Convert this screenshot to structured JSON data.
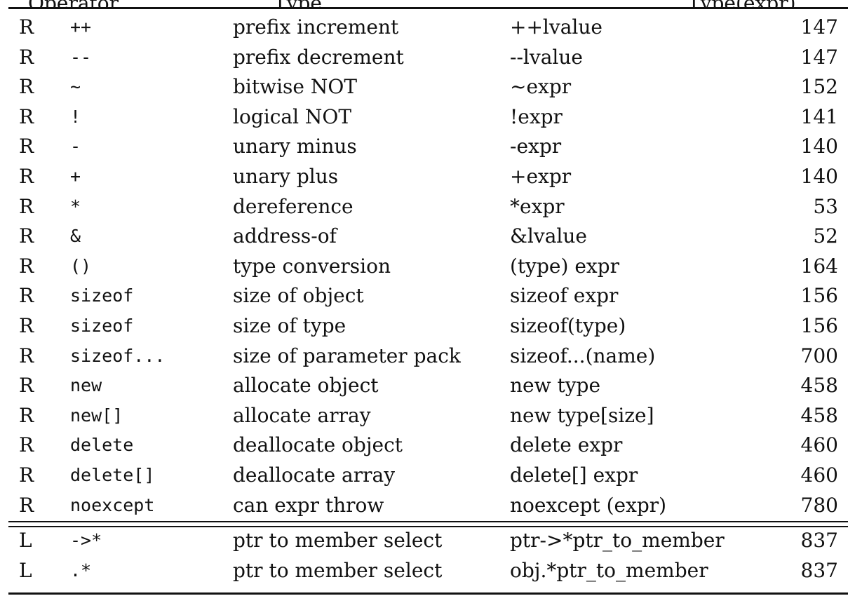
{
  "header_partial": {
    "left": "Operator",
    "mid": "Type",
    "right": "Type(expr)"
  },
  "section1": [
    {
      "assoc": "R",
      "op": "++",
      "func": "prefix increment",
      "use": "++lvalue",
      "page": "147"
    },
    {
      "assoc": "R",
      "op": "--",
      "func": "prefix decrement",
      "use": "--lvalue",
      "page": "147"
    },
    {
      "assoc": "R",
      "op": "~",
      "func": "bitwise NOT",
      "use": "~expr",
      "page": "152"
    },
    {
      "assoc": "R",
      "op": "!",
      "func": "logical NOT",
      "use": "!expr",
      "page": "141"
    },
    {
      "assoc": "R",
      "op": "-",
      "func": "unary minus",
      "use": "-expr",
      "page": "140"
    },
    {
      "assoc": "R",
      "op": "+",
      "func": "unary plus",
      "use": "+expr",
      "page": "140"
    },
    {
      "assoc": "R",
      "op": "*",
      "func": "dereference",
      "use": "*expr",
      "page": "53"
    },
    {
      "assoc": "R",
      "op": "&",
      "func": "address-of",
      "use": "&lvalue",
      "page": "52"
    },
    {
      "assoc": "R",
      "op": "()",
      "func": "type conversion",
      "use": "(type) expr",
      "page": "164"
    },
    {
      "assoc": "R",
      "op": "sizeof",
      "func": "size of object",
      "use": "sizeof expr",
      "page": "156"
    },
    {
      "assoc": "R",
      "op": "sizeof",
      "func": "size of type",
      "use": "sizeof(type)",
      "page": "156"
    },
    {
      "assoc": "R",
      "op": "sizeof...",
      "func": "size of parameter pack",
      "use": "sizeof...(name)",
      "page": "700"
    },
    {
      "assoc": "R",
      "op": "new",
      "func": "allocate object",
      "use": "new type",
      "page": "458"
    },
    {
      "assoc": "R",
      "op": "new[]",
      "func": "allocate array",
      "use": "new type[size]",
      "page": "458"
    },
    {
      "assoc": "R",
      "op": "delete",
      "func": "deallocate object",
      "use": "delete expr",
      "page": "460"
    },
    {
      "assoc": "R",
      "op": "delete[]",
      "func": "deallocate array",
      "use": "delete[] expr",
      "page": "460"
    },
    {
      "assoc": "R",
      "op": "noexcept",
      "func": "can expr throw",
      "use": "noexcept (expr)",
      "page": "780"
    }
  ],
  "section2": [
    {
      "assoc": "L",
      "op": "->*",
      "func": "ptr to member select",
      "use": "ptr->*ptr_to_member",
      "page": "837"
    },
    {
      "assoc": "L",
      "op": ".*",
      "func": "ptr to member select",
      "use": "obj.*ptr_to_member",
      "page": "837"
    }
  ]
}
